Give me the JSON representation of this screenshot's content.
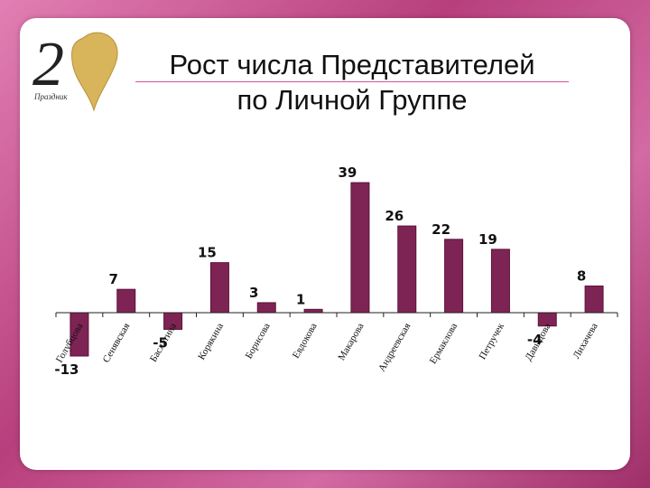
{
  "title": {
    "line1": "Рост числа Представителей",
    "line2": "по Личной Группе"
  },
  "logo": {
    "numeral": "2",
    "small_text": "Праздник",
    "icon": "gold-heart-logo-icon"
  },
  "colors": {
    "bar": "#7e2454",
    "bar_edge": "#5a1239",
    "axis": "#222222",
    "accent": "#d9529a"
  },
  "chart_data": {
    "type": "bar",
    "title": "Рост числа Представителей по Личной Группе",
    "xlabel": "",
    "ylabel": "",
    "categories": [
      "Голубцова",
      "Сенявская",
      "Баслатина",
      "Корякина",
      "Борисова",
      "Евдокова",
      "Макарова",
      "Андреевская",
      "Ермаклова",
      "Петручек",
      "Давыдова",
      "Лихачева"
    ],
    "values": [
      -13,
      7,
      -5,
      15,
      3,
      1,
      39,
      26,
      22,
      19,
      -4,
      8
    ],
    "ylim": [
      -13,
      39
    ],
    "grid": false,
    "legend": "none"
  }
}
